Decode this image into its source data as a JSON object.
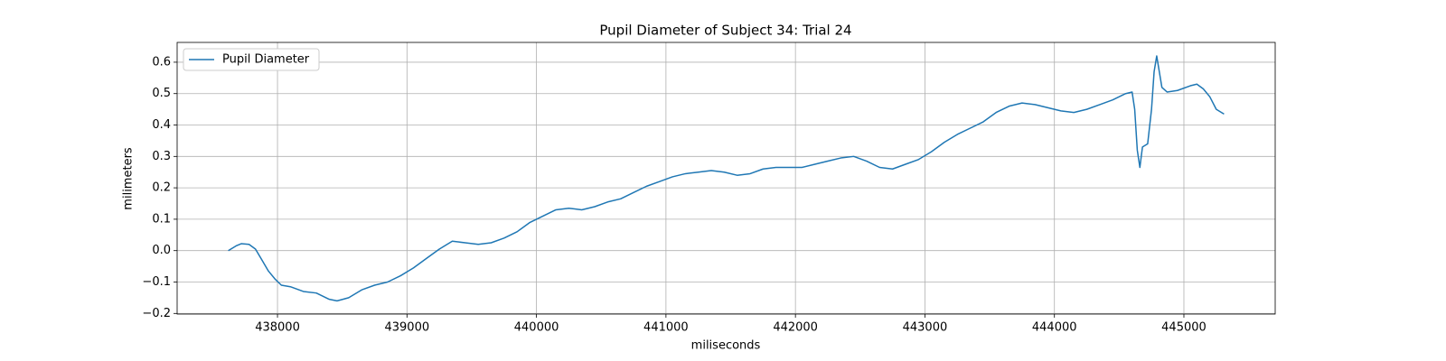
{
  "chart_data": {
    "type": "line",
    "title": "Pupil Diameter of Subject 34: Trial 24",
    "x_label": "miliseconds",
    "y_label": "milimeters",
    "x": [
      437620,
      437680,
      437720,
      437780,
      437830,
      437880,
      437930,
      437980,
      438030,
      438100,
      438200,
      438300,
      438400,
      438460,
      438550,
      438650,
      438750,
      438850,
      438950,
      439050,
      439150,
      439250,
      439350,
      439450,
      439550,
      439650,
      439750,
      439850,
      439950,
      440050,
      440150,
      440250,
      440350,
      440450,
      440550,
      440650,
      440750,
      440850,
      440950,
      441050,
      441150,
      441250,
      441350,
      441450,
      441550,
      441650,
      441750,
      441850,
      441950,
      442050,
      442150,
      442250,
      442350,
      442450,
      442550,
      442650,
      442750,
      442850,
      442950,
      443050,
      443150,
      443250,
      443350,
      443450,
      443550,
      443650,
      443750,
      443850,
      443950,
      444050,
      444150,
      444250,
      444350,
      444450,
      444550,
      444600,
      444620,
      444640,
      444660,
      444680,
      444720,
      444750,
      444770,
      444790,
      444810,
      444830,
      444870,
      444950,
      445050,
      445100,
      445150,
      445200,
      445250,
      445310
    ],
    "series": [
      {
        "name": "Pupil Diameter",
        "color": "#1f77b4",
        "values": [
          0.0,
          0.015,
          0.022,
          0.02,
          0.005,
          -0.03,
          -0.065,
          -0.09,
          -0.11,
          -0.115,
          -0.13,
          -0.135,
          -0.155,
          -0.16,
          -0.15,
          -0.125,
          -0.11,
          -0.1,
          -0.08,
          -0.055,
          -0.025,
          0.005,
          0.03,
          0.025,
          0.02,
          0.025,
          0.04,
          0.06,
          0.09,
          0.11,
          0.13,
          0.135,
          0.13,
          0.14,
          0.155,
          0.165,
          0.185,
          0.205,
          0.22,
          0.235,
          0.245,
          0.25,
          0.255,
          0.25,
          0.24,
          0.245,
          0.26,
          0.265,
          0.265,
          0.265,
          0.275,
          0.285,
          0.295,
          0.3,
          0.285,
          0.265,
          0.26,
          0.275,
          0.29,
          0.315,
          0.345,
          0.37,
          0.39,
          0.41,
          0.44,
          0.46,
          0.47,
          0.465,
          0.455,
          0.445,
          0.44,
          0.45,
          0.465,
          0.48,
          0.5,
          0.505,
          0.45,
          0.32,
          0.265,
          0.33,
          0.34,
          0.45,
          0.57,
          0.62,
          0.57,
          0.52,
          0.505,
          0.51,
          0.525,
          0.53,
          0.515,
          0.49,
          0.45,
          0.435
        ]
      }
    ],
    "xlim": [
      437225,
      445705
    ],
    "ylim": [
      -0.202,
      0.663
    ],
    "xticks": [
      438000,
      439000,
      440000,
      441000,
      442000,
      443000,
      444000,
      445000
    ],
    "yticks": [
      {
        "value": -0.2,
        "label": "−0.2"
      },
      {
        "value": -0.1,
        "label": "−0.1"
      },
      {
        "value": 0.0,
        "label": "0.0"
      },
      0.1,
      0.2,
      0.3,
      0.4,
      0.5,
      0.6
    ],
    "grid": true,
    "legend": "upper left"
  }
}
